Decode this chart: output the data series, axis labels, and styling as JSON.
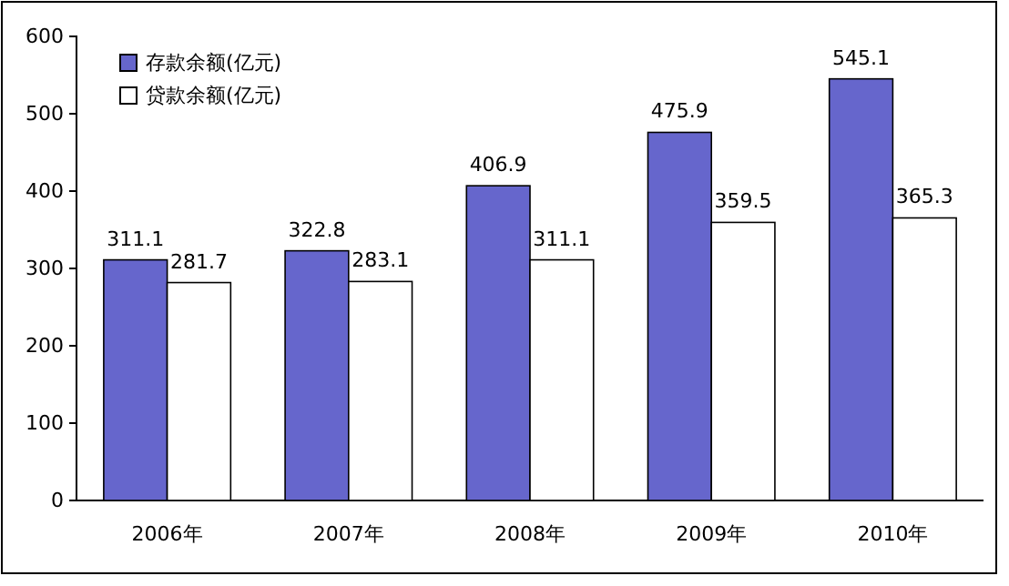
{
  "chart_data": {
    "type": "bar",
    "categories": [
      "2006年",
      "2007年",
      "2008年",
      "2009年",
      "2010年"
    ],
    "series": [
      {
        "name": "存款余额(亿元)",
        "color": "#6666cc",
        "values": [
          311.1,
          322.8,
          406.9,
          475.9,
          545.1
        ]
      },
      {
        "name": "贷款余额(亿元)",
        "color": "#ffffff",
        "values": [
          281.7,
          283.1,
          311.1,
          359.5,
          365.3
        ]
      }
    ],
    "ylim": [
      0,
      600
    ],
    "yticks": [
      0,
      100,
      200,
      300,
      400,
      500,
      600
    ],
    "data_labels": true,
    "legend": "top left",
    "grid": false
  }
}
